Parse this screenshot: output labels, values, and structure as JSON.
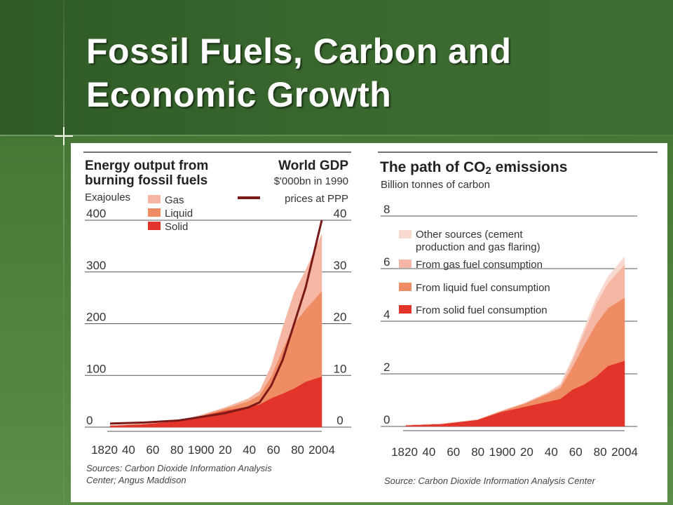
{
  "slide": {
    "title_line1": "Fossil Fuels, Carbon and",
    "title_line2": "Economic Growth"
  },
  "colors": {
    "background": "#4a7c39",
    "header": "#2f5a27",
    "gas": "#f5b7a4",
    "liquid": "#ef8c63",
    "solid": "#e2342a",
    "other": "#f8d9cf",
    "gdp_line": "#7c1a1a"
  },
  "chart_data": [
    {
      "type": "area",
      "title_line1": "Energy output from",
      "title_line2": "burning fossil fuels",
      "ylabel": "Exajoules",
      "ylim": [
        0,
        400
      ],
      "y_ticks": [
        "400",
        "300",
        "200",
        "100",
        "0"
      ],
      "x_tick_labels": [
        "1820",
        "40",
        "60",
        "80",
        "1900",
        "20",
        "40",
        "60",
        "80",
        "2004"
      ],
      "x": [
        1820,
        1850,
        1880,
        1900,
        1920,
        1940,
        1950,
        1960,
        1970,
        1980,
        1990,
        2004
      ],
      "series": [
        {
          "name": "Solid",
          "values": [
            3,
            6,
            12,
            22,
            32,
            40,
            44,
            56,
            65,
            75,
            88,
            98
          ]
        },
        {
          "name": "Liquid",
          "values": [
            0,
            0,
            0,
            1,
            4,
            10,
            18,
            42,
            85,
            125,
            140,
            165
          ]
        },
        {
          "name": "Gas",
          "values": [
            0,
            0,
            0,
            1,
            2,
            5,
            8,
            20,
            42,
            60,
            75,
            110
          ]
        }
      ],
      "secondary_axis": {
        "title_line1": "World GDP",
        "title_line2": "$'000bn in 1990",
        "title_line3": "prices at PPP",
        "ylim": [
          0,
          40
        ],
        "y_ticks": [
          "40",
          "30",
          "20",
          "10",
          "0"
        ],
        "series_name": "World GDP",
        "x": [
          1820,
          1850,
          1880,
          1900,
          1920,
          1940,
          1950,
          1960,
          1970,
          1980,
          1990,
          2004
        ],
        "values": [
          0.7,
          0.9,
          1.3,
          2.0,
          2.7,
          3.8,
          4.8,
          8,
          13,
          20,
          27,
          40
        ]
      },
      "source_line1": "Sources: Carbon Dioxide Information Analysis",
      "source_line2": "Center; Angus Maddison"
    },
    {
      "type": "area",
      "title_prefix": "The path of CO",
      "title_sub": "2",
      "title_suffix": " emissions",
      "ylabel": "Billion tonnes of carbon",
      "ylim": [
        0,
        8
      ],
      "y_ticks": [
        "8",
        "6",
        "4",
        "2",
        "0"
      ],
      "x_tick_labels": [
        "1820",
        "40",
        "60",
        "80",
        "1900",
        "20",
        "40",
        "60",
        "80",
        "2004"
      ],
      "x": [
        1820,
        1850,
        1880,
        1900,
        1920,
        1940,
        1950,
        1960,
        1970,
        1980,
        1990,
        2004
      ],
      "series": [
        {
          "name": "From solid fuel consumption",
          "values": [
            0.05,
            0.1,
            0.25,
            0.55,
            0.75,
            0.95,
            1.05,
            1.4,
            1.6,
            1.9,
            2.3,
            2.5
          ]
        },
        {
          "name": "From liquid fuel consumption",
          "values": [
            0,
            0,
            0.01,
            0.03,
            0.12,
            0.3,
            0.42,
            0.85,
            1.5,
            2.0,
            2.2,
            2.4
          ]
        },
        {
          "name": "From gas fuel consumption",
          "values": [
            0,
            0,
            0,
            0.01,
            0.02,
            0.05,
            0.1,
            0.25,
            0.5,
            0.75,
            0.95,
            1.25
          ]
        },
        {
          "name": "Other sources (cement production and gas flaring)",
          "values": [
            0,
            0,
            0,
            0,
            0.01,
            0.02,
            0.05,
            0.1,
            0.15,
            0.2,
            0.25,
            0.3
          ]
        }
      ],
      "legend": [
        {
          "line1": "Other sources (cement",
          "line2": "production and gas flaring)"
        },
        {
          "line1": "From gas fuel consumption"
        },
        {
          "line1": "From liquid fuel consumption"
        },
        {
          "line1": "From solid fuel consumption"
        }
      ],
      "source": "Source: Carbon Dioxide Information Analysis Center"
    }
  ]
}
